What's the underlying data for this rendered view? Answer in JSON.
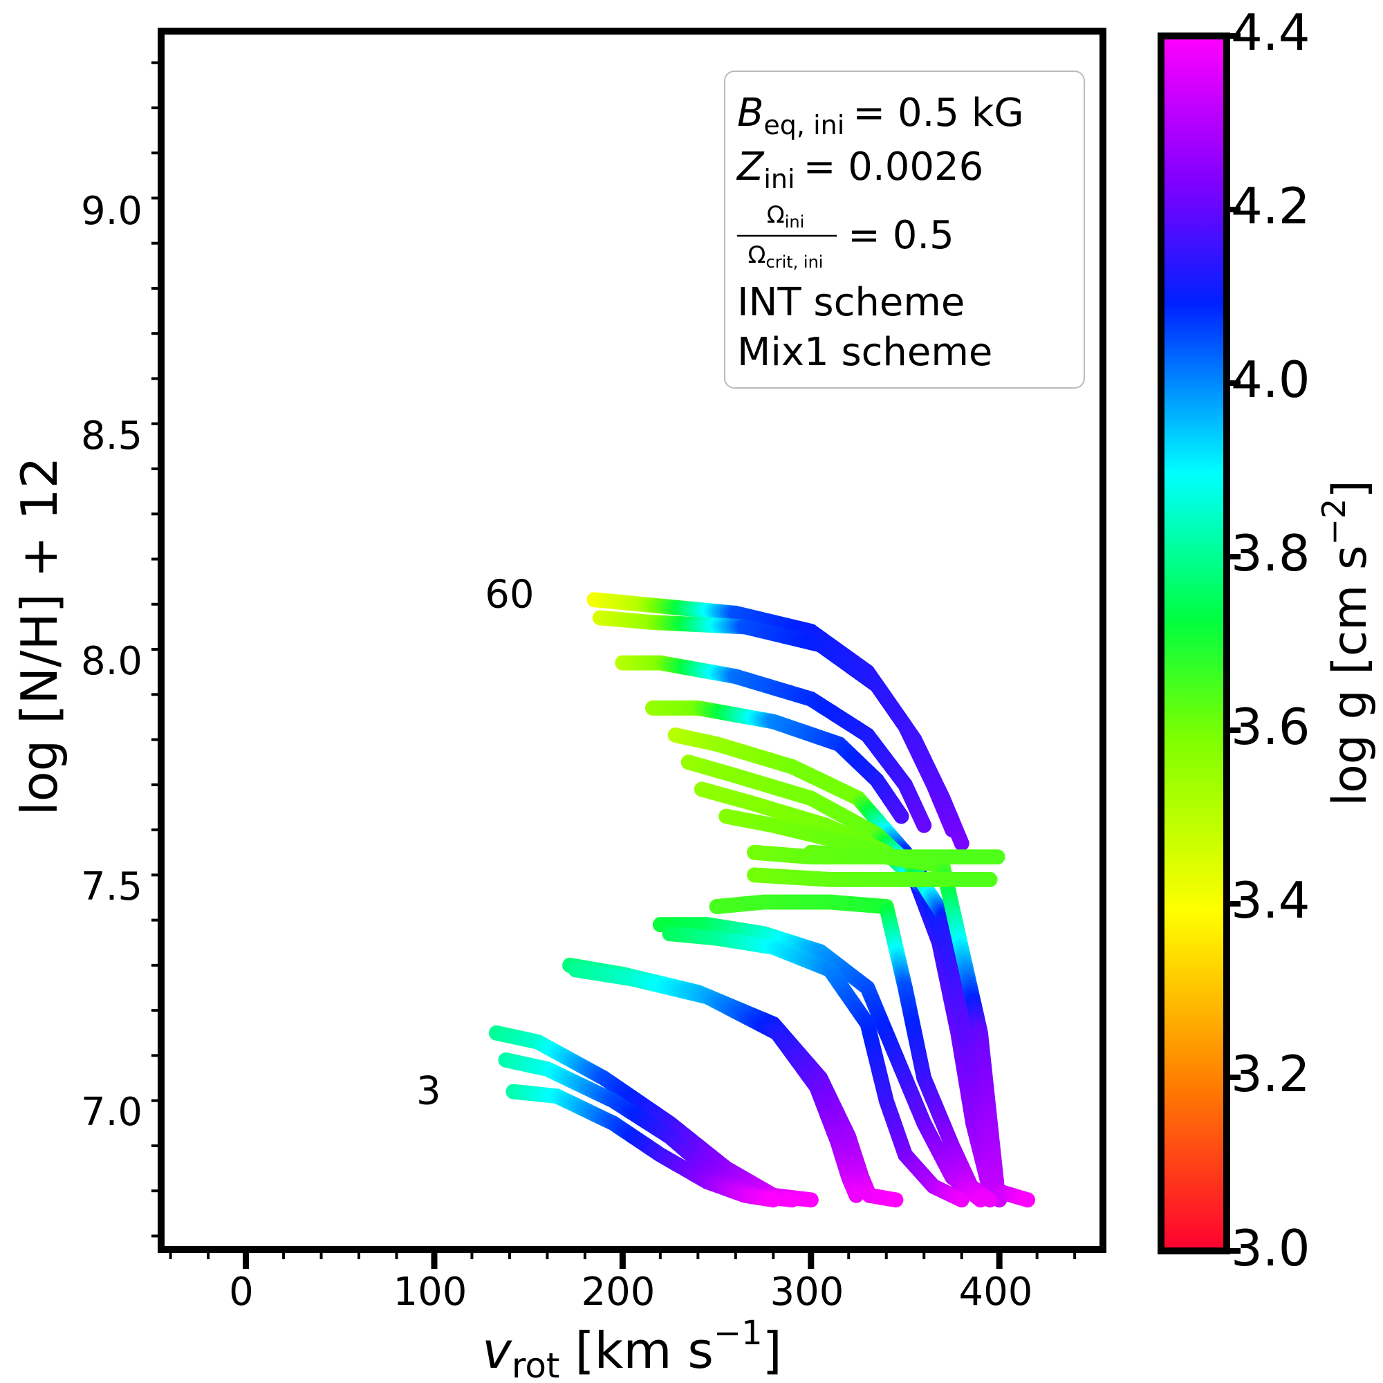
{
  "chart_data": {
    "type": "scatter",
    "xlim": [
      -45,
      455
    ],
    "ylim": [
      6.72,
      9.42
    ],
    "xticks": [
      "0",
      "100",
      "200",
      "300",
      "400"
    ],
    "yticks": [
      "7.0",
      "7.5",
      "8.0",
      "8.5",
      "9.0"
    ],
    "xlabel_main": "v",
    "xlabel_sub": "rot",
    "xlabel_units": "[km s",
    "xlabel_exp": "−1",
    "xlabel_close": "]",
    "ylabel": "log [N/H] + 12",
    "colorbar": {
      "label": "log g [cm s",
      "label_exp": "−2",
      "label_close": "]",
      "range": [
        3.0,
        4.4
      ],
      "ticks": [
        "3.0",
        "3.2",
        "3.4",
        "3.6",
        "3.8",
        "4.0",
        "4.2",
        "4.4"
      ]
    },
    "legend": {
      "placement": "top-right",
      "b_label": "B",
      "b_sub": "eq, ini",
      "b_value": "=  0.5 kG",
      "z_label": "Z",
      "z_sub": "ini",
      "z_value": "=  0.0026",
      "omega_num": "Ω",
      "omega_num_sub": "ini",
      "omega_den": "Ω",
      "omega_den_sub": "crit, ini",
      "omega_value": "= 0.5",
      "line4": "INT scheme",
      "line5": "Mix1 scheme"
    },
    "annotations": [
      {
        "text": "60",
        "x": 140,
        "y": 8.17
      },
      {
        "text": "3",
        "x": 97,
        "y": 7.07
      }
    ],
    "series": [
      {
        "x": [
          185,
          210,
          260,
          300,
          330,
          350,
          365,
          375
        ],
        "y": [
          8.16,
          8.15,
          8.13,
          8.09,
          8.0,
          7.88,
          7.75,
          7.65
        ],
        "logg": [
          3.4,
          3.5,
          4.05,
          4.1,
          4.13,
          4.16,
          4.19,
          4.22
        ]
      },
      {
        "x": [
          188,
          215,
          265,
          305,
          335,
          355,
          370,
          380
        ],
        "y": [
          8.12,
          8.11,
          8.1,
          8.06,
          7.97,
          7.85,
          7.72,
          7.62
        ],
        "logg": [
          3.45,
          3.55,
          4.05,
          4.1,
          4.13,
          4.16,
          4.19,
          4.22
        ]
      },
      {
        "x": [
          200,
          220,
          260,
          300,
          330,
          350,
          360
        ],
        "y": [
          8.02,
          8.02,
          7.99,
          7.94,
          7.86,
          7.75,
          7.66
        ],
        "logg": [
          3.5,
          3.58,
          4.02,
          4.08,
          4.12,
          4.16,
          4.2
        ]
      },
      {
        "x": [
          216,
          240,
          280,
          315,
          335,
          348
        ],
        "y": [
          7.92,
          7.92,
          7.89,
          7.84,
          7.76,
          7.68
        ],
        "logg": [
          3.55,
          3.6,
          4.0,
          4.07,
          4.12,
          4.17
        ]
      },
      {
        "x": [
          228,
          250,
          290,
          325,
          350,
          368,
          378,
          386,
          395
        ],
        "y": [
          7.86,
          7.84,
          7.79,
          7.72,
          7.6,
          7.4,
          7.2,
          7.0,
          6.85
        ],
        "logg": [
          3.5,
          3.55,
          3.6,
          3.6,
          4.08,
          4.15,
          4.2,
          4.25,
          4.32
        ]
      },
      {
        "x": [
          235,
          260,
          300,
          335,
          358,
          372,
          382,
          390,
          398
        ],
        "y": [
          7.8,
          7.77,
          7.72,
          7.64,
          7.55,
          7.38,
          7.18,
          6.98,
          6.84
        ],
        "logg": [
          3.55,
          3.58,
          3.6,
          3.62,
          4.08,
          4.15,
          4.2,
          4.26,
          4.33
        ]
      },
      {
        "x": [
          242,
          268,
          308,
          340,
          360,
          375,
          385,
          392,
          400
        ],
        "y": [
          7.74,
          7.71,
          7.66,
          7.6,
          7.52,
          7.35,
          7.15,
          6.96,
          6.83
        ],
        "logg": [
          3.56,
          3.58,
          3.6,
          3.62,
          4.08,
          4.15,
          4.2,
          4.27,
          4.34
        ]
      },
      {
        "x": [
          255,
          280,
          320,
          352,
          372,
          388,
          397
        ],
        "y": [
          7.68,
          7.66,
          7.62,
          7.58,
          7.45,
          7.1,
          6.84
        ],
        "logg": [
          3.58,
          3.6,
          3.62,
          3.63,
          4.12,
          4.22,
          4.33
        ]
      },
      {
        "x": [
          270,
          300,
          340,
          370,
          390,
          399,
          415
        ],
        "y": [
          7.6,
          7.59,
          7.59,
          7.57,
          7.2,
          6.85,
          6.83
        ],
        "logg": [
          3.6,
          3.62,
          3.63,
          3.64,
          4.2,
          4.32,
          4.4
        ]
      },
      {
        "x": [
          270,
          310,
          350,
          380,
          395
        ],
        "y": [
          7.55,
          7.54,
          7.54,
          7.54,
          7.54
        ],
        "logg": [
          3.6,
          3.62,
          3.63,
          3.64,
          3.64
        ]
      },
      {
        "x": [
          300,
          340,
          370,
          385,
          392,
          399
        ],
        "y": [
          7.6,
          7.59,
          7.59,
          7.59,
          7.59,
          7.59
        ],
        "logg": [
          3.62,
          3.63,
          3.64,
          3.64,
          3.64,
          3.64
        ]
      },
      {
        "x": [
          250,
          275,
          310,
          340,
          350,
          360,
          375,
          385,
          395
        ],
        "y": [
          7.48,
          7.49,
          7.49,
          7.48,
          7.3,
          7.1,
          6.95,
          6.86,
          6.83
        ],
        "logg": [
          3.65,
          3.66,
          3.68,
          3.7,
          4.05,
          4.15,
          4.25,
          4.33,
          4.38
        ]
      },
      {
        "x": [
          220,
          245,
          275,
          305,
          330,
          345,
          360,
          375,
          390
        ],
        "y": [
          7.44,
          7.44,
          7.42,
          7.38,
          7.3,
          7.15,
          7.0,
          6.88,
          6.83
        ],
        "logg": [
          3.72,
          3.75,
          3.85,
          3.98,
          4.05,
          4.12,
          4.2,
          4.3,
          4.38
        ]
      },
      {
        "x": [
          225,
          250,
          280,
          310,
          330,
          340,
          350,
          365,
          380
        ],
        "y": [
          7.42,
          7.41,
          7.39,
          7.34,
          7.22,
          7.05,
          6.93,
          6.86,
          6.83
        ],
        "logg": [
          3.75,
          3.8,
          3.9,
          4.0,
          4.08,
          4.15,
          4.22,
          4.3,
          4.38
        ]
      },
      {
        "x": [
          172,
          200,
          240,
          280,
          305,
          320,
          327,
          331,
          345
        ],
        "y": [
          7.35,
          7.33,
          7.29,
          7.22,
          7.1,
          6.97,
          6.88,
          6.84,
          6.83
        ],
        "logg": [
          3.78,
          3.82,
          3.95,
          4.1,
          4.2,
          4.27,
          4.33,
          4.38,
          4.4
        ]
      },
      {
        "x": [
          175,
          205,
          245,
          282,
          303,
          314,
          320,
          324
        ],
        "y": [
          7.34,
          7.32,
          7.28,
          7.2,
          7.08,
          6.96,
          6.88,
          6.84
        ],
        "logg": [
          3.8,
          3.85,
          3.97,
          4.12,
          4.2,
          4.27,
          4.33,
          4.38
        ]
      },
      {
        "x": [
          133,
          155,
          190,
          225,
          255,
          280,
          300
        ],
        "y": [
          7.2,
          7.18,
          7.1,
          7.0,
          6.9,
          6.84,
          6.83
        ],
        "logg": [
          3.8,
          3.85,
          4.05,
          4.15,
          4.25,
          4.35,
          4.4
        ]
      },
      {
        "x": [
          138,
          160,
          195,
          225,
          250,
          270,
          290
        ],
        "y": [
          7.14,
          7.12,
          7.05,
          6.97,
          6.88,
          6.84,
          6.83
        ],
        "logg": [
          3.82,
          3.88,
          4.05,
          4.15,
          4.25,
          4.35,
          4.4
        ]
      },
      {
        "x": [
          142,
          165,
          195,
          220,
          245,
          265,
          280
        ],
        "y": [
          7.07,
          7.06,
          7.0,
          6.93,
          6.87,
          6.84,
          6.83
        ],
        "logg": [
          3.82,
          3.9,
          4.05,
          4.15,
          4.25,
          4.35,
          4.4
        ]
      }
    ]
  }
}
